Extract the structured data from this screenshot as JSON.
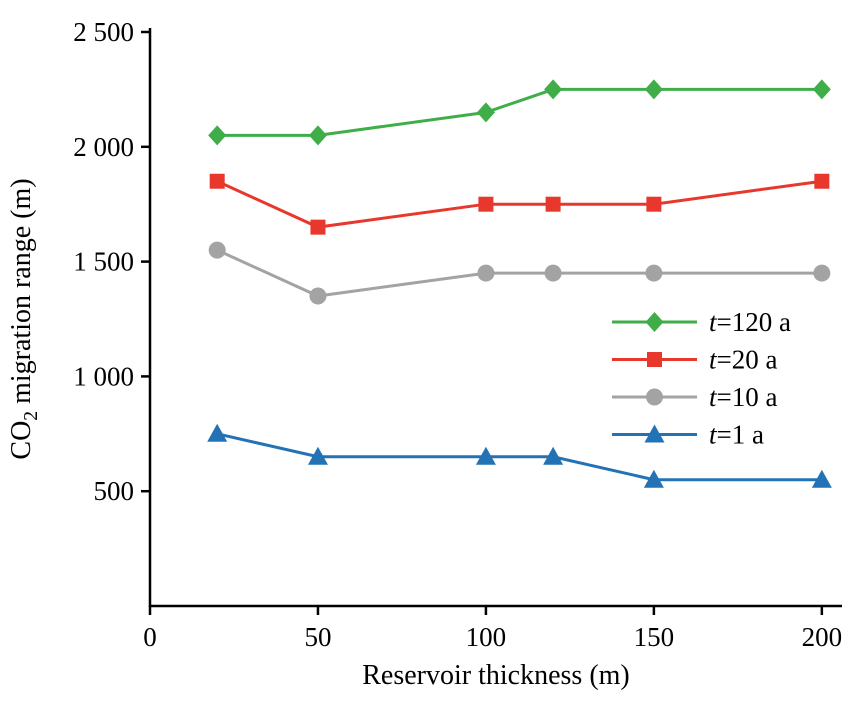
{
  "chart_data": {
    "type": "line",
    "x": [
      20,
      50,
      100,
      120,
      150,
      200
    ],
    "series": [
      {
        "name": "t=120 a",
        "values": [
          2050,
          2050,
          2150,
          2250,
          2250,
          2250
        ],
        "color": "#3fae49",
        "marker": "diamond"
      },
      {
        "name": "t=20 a",
        "values": [
          1850,
          1650,
          1750,
          1750,
          1750,
          1850
        ],
        "color": "#e8372c",
        "marker": "square"
      },
      {
        "name": "t=10 a",
        "values": [
          1550,
          1350,
          1450,
          1450,
          1450,
          1450
        ],
        "color": "#a3a3a3",
        "marker": "circle"
      },
      {
        "name": "t=1 a",
        "values": [
          750,
          650,
          650,
          650,
          550,
          550
        ],
        "color": "#2372b5",
        "marker": "triangle"
      }
    ],
    "title": "",
    "xlabel": "Reservoir thickness (m)",
    "ylabel": "CO2 migration range (m)",
    "ylabel_parts": [
      {
        "text": "CO",
        "sub": false
      },
      {
        "text": "2",
        "sub": true
      },
      {
        "text": " migration range (m)",
        "sub": false
      }
    ],
    "xlim": [
      0,
      206
    ],
    "ylim": [
      0,
      2500
    ],
    "xticks": {
      "values": [
        0,
        50,
        100,
        150,
        200
      ],
      "labels": [
        "0",
        "50",
        "100",
        "150",
        "200"
      ]
    },
    "yticks": {
      "values": [
        500,
        1000,
        1500,
        2000,
        2500
      ],
      "labels": [
        "500",
        "1 000",
        "1 500",
        "2 000",
        "2 500"
      ]
    },
    "grid": false,
    "legend_position": "inside-right-center",
    "axis_color": "#000000"
  }
}
